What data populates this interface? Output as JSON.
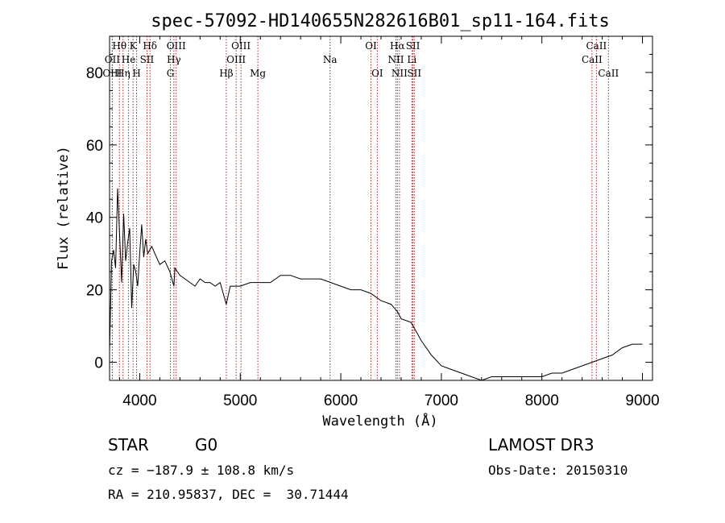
{
  "chart_data": {
    "type": "line",
    "title": "spec-57092-HD140655N282616B01_sp11-164.fits",
    "xlabel": "Wavelength (Å)",
    "ylabel": "Flux (relative)",
    "xlim": [
      3700,
      9100
    ],
    "ylim": [
      -5,
      90
    ],
    "xticks": [
      4000,
      5000,
      6000,
      7000,
      8000,
      9000
    ],
    "yticks": [
      0,
      20,
      40,
      60,
      80
    ],
    "series": [
      {
        "name": "flux",
        "x": [
          3700,
          3720,
          3740,
          3760,
          3780,
          3800,
          3820,
          3840,
          3860,
          3880,
          3900,
          3920,
          3940,
          3960,
          3980,
          4000,
          4020,
          4040,
          4060,
          4080,
          4100,
          4120,
          4150,
          4200,
          4250,
          4300,
          4340,
          4350,
          4400,
          4450,
          4500,
          4550,
          4600,
          4650,
          4700,
          4750,
          4800,
          4861,
          4900,
          4950,
          5000,
          5100,
          5200,
          5300,
          5400,
          5500,
          5600,
          5700,
          5800,
          5900,
          6000,
          6100,
          6200,
          6300,
          6400,
          6500,
          6563,
          6600,
          6700,
          6800,
          6900,
          7000,
          7100,
          7200,
          7300,
          7400,
          7500,
          7600,
          7700,
          7800,
          7900,
          8000,
          8100,
          8200,
          8300,
          8400,
          8500,
          8600,
          8700,
          8800,
          8900,
          9000
        ],
        "y": [
          3,
          28,
          31,
          26,
          48,
          35,
          22,
          41,
          28,
          33,
          37,
          15,
          27,
          25,
          21,
          30,
          38,
          29,
          34,
          30,
          31,
          32,
          30,
          27,
          28,
          25,
          21,
          26,
          24,
          23,
          22,
          21,
          23,
          22,
          22,
          21,
          22,
          16,
          21,
          21,
          21,
          22,
          22,
          22,
          24,
          24,
          23,
          23,
          23,
          22,
          21,
          20,
          20,
          19,
          17,
          16,
          14,
          12,
          11,
          6,
          2,
          -1,
          -2,
          -3,
          -4,
          -5,
          -4,
          -4,
          -4,
          -4,
          -4,
          -4,
          -3,
          -3,
          -2,
          -1,
          0,
          1,
          2,
          4,
          5,
          5
        ]
      }
    ],
    "spectral_lines": [
      {
        "name": "Hθ",
        "wave": 3798,
        "row": 1
      },
      {
        "name": "OII",
        "wave": 3727,
        "row": 2
      },
      {
        "name": "OIII",
        "wave": 3727,
        "row": 3
      },
      {
        "name": "K",
        "wave": 3934,
        "row": 1
      },
      {
        "name": "He",
        "wave": 3889,
        "row": 2
      },
      {
        "name": "Hη",
        "wave": 3835,
        "row": 3
      },
      {
        "name": "SII",
        "wave": 4072,
        "row": 2
      },
      {
        "name": "H",
        "wave": 3969,
        "row": 3
      },
      {
        "name": "Hδ",
        "wave": 4102,
        "row": 1
      },
      {
        "name": "OIII",
        "wave": 4363,
        "row": 1
      },
      {
        "name": "Hγ",
        "wave": 4340,
        "row": 2
      },
      {
        "name": "G",
        "wave": 4305,
        "row": 3
      },
      {
        "name": "Hβ",
        "wave": 4861,
        "row": 3
      },
      {
        "name": "OIII",
        "wave": 5007,
        "row": 1
      },
      {
        "name": "OIII",
        "wave": 4959,
        "row": 2
      },
      {
        "name": "Mg",
        "wave": 5175,
        "row": 3
      },
      {
        "name": "Na",
        "wave": 5893,
        "row": 2
      },
      {
        "name": "OI",
        "wave": 6300,
        "row": 1
      },
      {
        "name": "OI",
        "wave": 6363,
        "row": 3
      },
      {
        "name": "Hα",
        "wave": 6563,
        "row": 1
      },
      {
        "name": "NII",
        "wave": 6548,
        "row": 2
      },
      {
        "name": "NII",
        "wave": 6583,
        "row": 3
      },
      {
        "name": "SII",
        "wave": 6717,
        "row": 1
      },
      {
        "name": "Li",
        "wave": 6707,
        "row": 2
      },
      {
        "name": "SII",
        "wave": 6731,
        "row": 3
      },
      {
        "name": "CaII",
        "wave": 8542,
        "row": 1
      },
      {
        "name": "CaII",
        "wave": 8498,
        "row": 2
      },
      {
        "name": "CaII",
        "wave": 8662,
        "row": 3
      }
    ],
    "line_color": "#000000",
    "marker_color": "#b22222"
  },
  "info": {
    "object_class": "STAR",
    "subclass": "G0",
    "survey": "LAMOST DR3",
    "cz": "cz = −187.9 ± 108.8 km/s",
    "obs_date": "Obs-Date: 20150310",
    "coords": "RA = 210.95837, DEC =  30.71444"
  }
}
